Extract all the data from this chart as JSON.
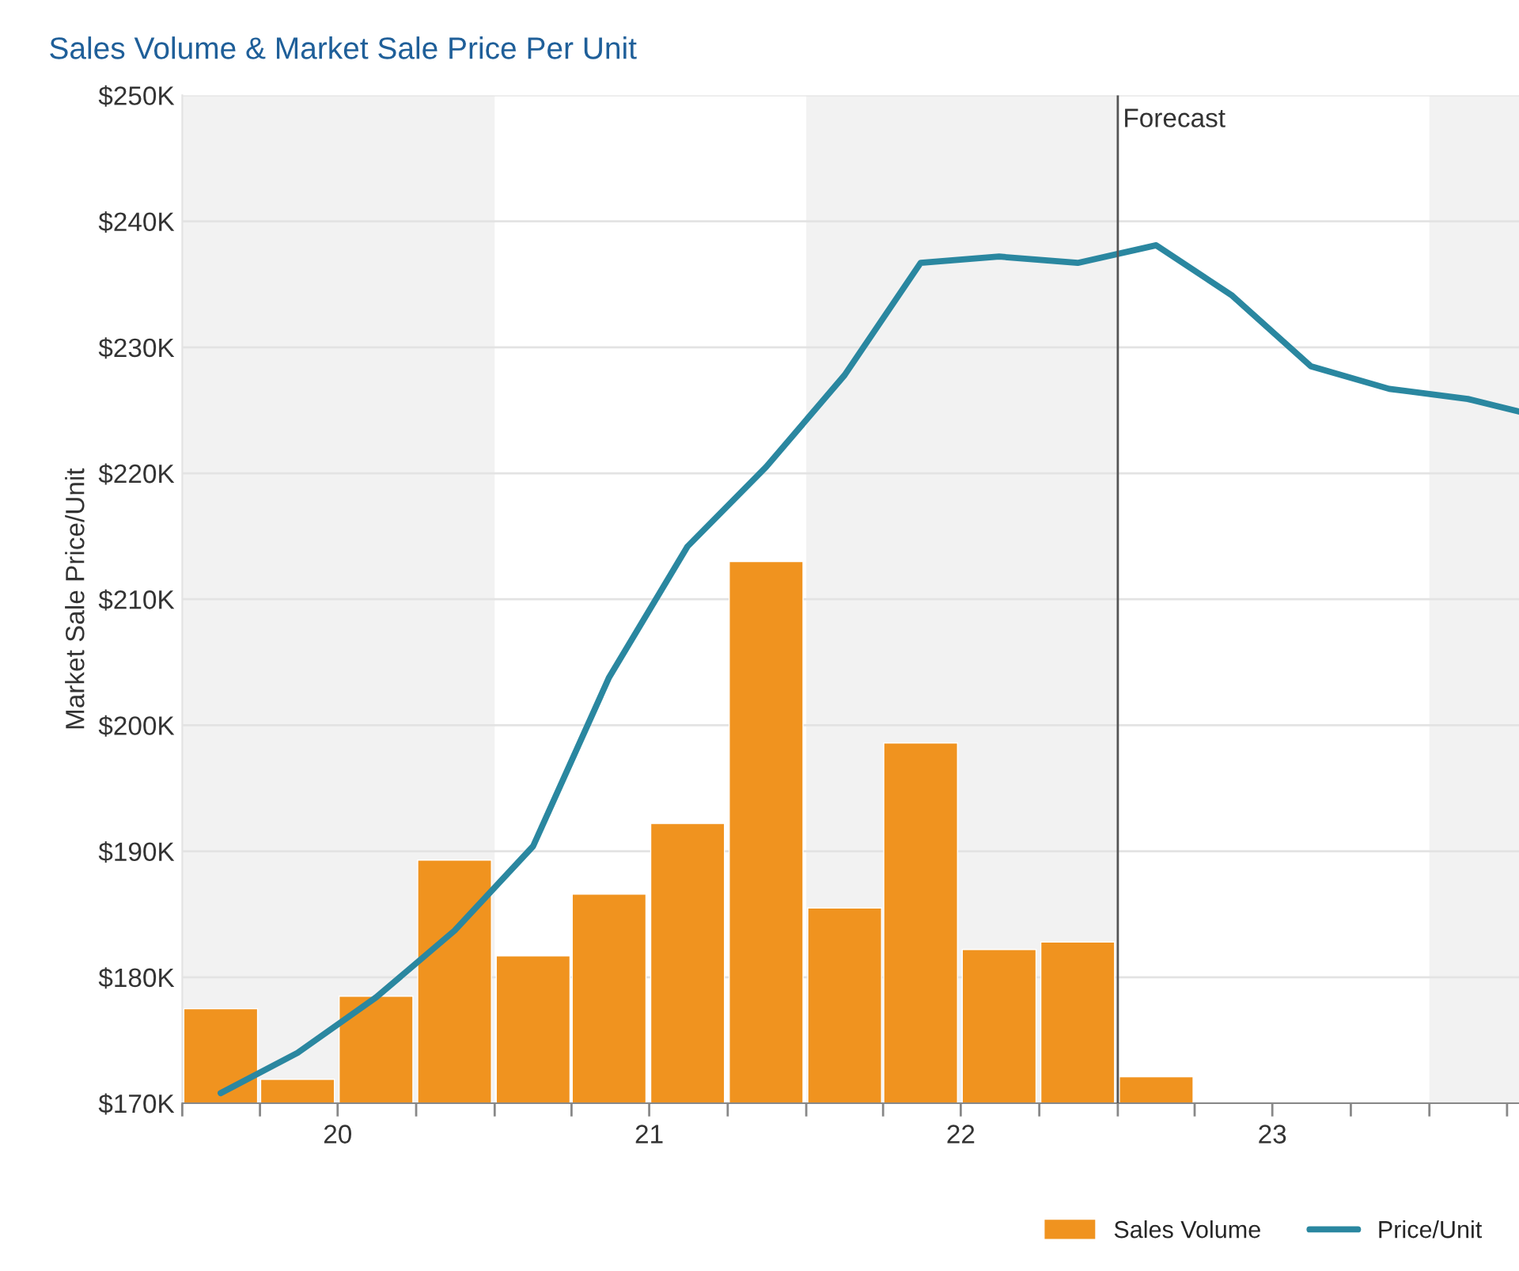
{
  "chart_data": {
    "type": "bar",
    "title": "Sales Volume & Market Sale Price Per Unit",
    "ylabel": "Market Sale Price/Unit",
    "series": [
      {
        "name": "Sales Volume",
        "color": "#f0931f",
        "x": [
          "2020-02-15",
          "2020-05-15",
          "2020-08-15",
          "2020-11-15",
          "2021-02-15",
          "2021-05-15",
          "2021-08-15",
          "2021-11-15",
          "2022-02-15",
          "2022-05-15",
          "2022-08-15",
          "2022-11-15",
          "2023-02-15"
        ],
        "values": [
          177.5,
          171.9,
          178.5,
          189.3,
          181.7,
          186.6,
          192.2,
          213.0,
          185.5,
          198.6,
          182.2,
          182.8,
          172.1
        ]
      },
      {
        "name": "Price/Unit",
        "type": "line",
        "color": "#2a87a0",
        "x": [
          "2020-02-15",
          "2020-05-15",
          "2020-08-15",
          "2020-11-15",
          "2021-02-15",
          "2021-05-15",
          "2021-08-15",
          "2021-11-15",
          "2022-02-15",
          "2022-05-15",
          "2022-08-15",
          "2022-11-15",
          "2023-02-15",
          "2023-05-15",
          "2023-08-15",
          "2023-11-15",
          "2024-02-15",
          "2024-04-15"
        ],
        "values": [
          170.8,
          174.0,
          178.4,
          183.7,
          190.4,
          203.8,
          214.2,
          220.5,
          227.8,
          236.7,
          237.2,
          236.7,
          238.1,
          234.1,
          228.5,
          226.7,
          225.9,
          224.9
        ]
      }
    ],
    "xlim": [
      "2020-01-01",
      "2024-04-15"
    ],
    "xticks": [
      {
        "value": "2020-01-01",
        "label": null
      },
      {
        "value": "2020-04-01",
        "label": null
      },
      {
        "value": "2020-07-01",
        "label": "20"
      },
      {
        "value": "2020-10-01",
        "label": null
      },
      {
        "value": "2021-01-01",
        "label": null
      },
      {
        "value": "2021-04-01",
        "label": null
      },
      {
        "value": "2021-07-01",
        "label": "21"
      },
      {
        "value": "2021-10-01",
        "label": null
      },
      {
        "value": "2022-01-01",
        "label": null
      },
      {
        "value": "2022-04-01",
        "label": null
      },
      {
        "value": "2022-07-01",
        "label": "22"
      },
      {
        "value": "2022-10-01",
        "label": null
      },
      {
        "value": "2023-01-01",
        "label": null
      },
      {
        "value": "2023-04-01",
        "label": null
      },
      {
        "value": "2023-07-01",
        "label": "23"
      },
      {
        "value": "2023-10-01",
        "label": null
      },
      {
        "value": "2024-01-01",
        "label": null
      },
      {
        "value": "2024-04-01",
        "label": null
      }
    ],
    "ylim": [
      170,
      250
    ],
    "yticks": [
      {
        "value": 170,
        "label": "$170K"
      },
      {
        "value": 180,
        "label": "$180K"
      },
      {
        "value": 190,
        "label": "$190K"
      },
      {
        "value": 200,
        "label": "$200K"
      },
      {
        "value": 210,
        "label": "$210K"
      },
      {
        "value": 220,
        "label": "$220K"
      },
      {
        "value": 230,
        "label": "$230K"
      },
      {
        "value": 240,
        "label": "$240K"
      },
      {
        "value": 250,
        "label": "$250K"
      }
    ],
    "ref_lines": [
      {
        "axis": "x",
        "value": "2023-01-01",
        "label": "Forecast",
        "color": "#555555"
      }
    ],
    "bands": [
      {
        "axis": "x",
        "from": "2020-01-01",
        "to": "2021-01-01",
        "color": "#f2f2f2"
      },
      {
        "axis": "x",
        "from": "2022-01-01",
        "to": "2023-01-01",
        "color": "#f2f2f2"
      },
      {
        "axis": "x",
        "from": "2024-01-01",
        "to": "2024-04-15",
        "color": "#f2f2f2"
      }
    ],
    "grid": "y",
    "legend": "bottom right",
    "marker": "none",
    "line_style": "solid"
  }
}
